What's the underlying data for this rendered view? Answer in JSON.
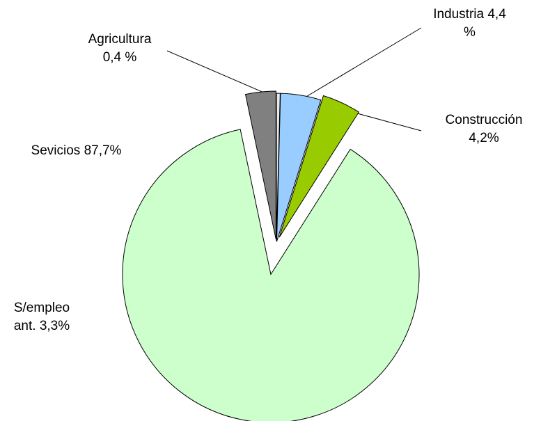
{
  "chart_data": {
    "type": "pie",
    "categories": [
      "Agricultura",
      "Industria",
      "Construcción",
      "Sevicios",
      "S/empleo ant."
    ],
    "values": [
      0.4,
      4.4,
      4.2,
      87.7,
      3.3
    ],
    "value_labels": [
      "0,4 %",
      "4,4 %",
      "4,2%",
      "87,7%",
      "3,3%"
    ],
    "colors": [
      "#e8e8e8",
      "#99ccff",
      "#99cc00",
      "#ccffcc",
      "#808080"
    ]
  }
}
